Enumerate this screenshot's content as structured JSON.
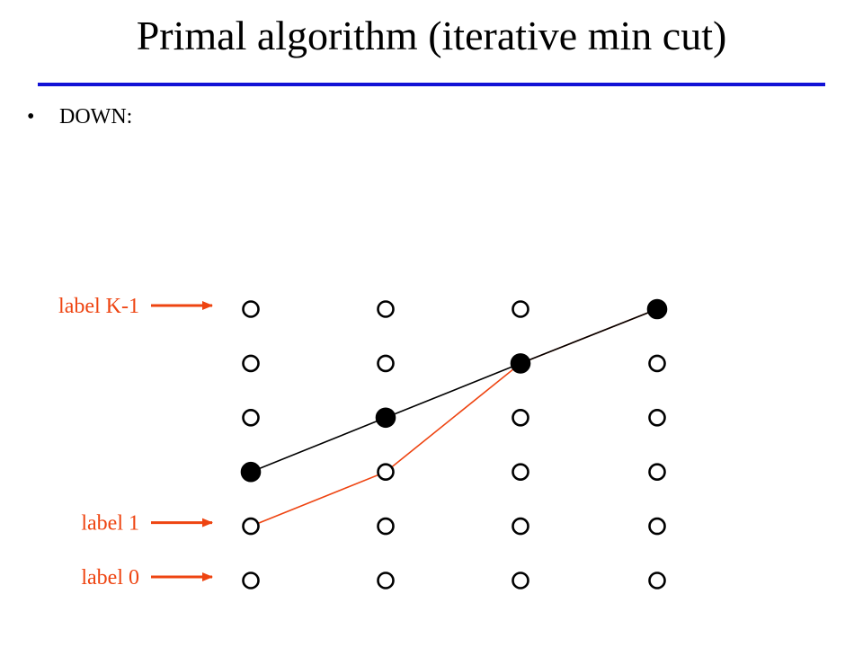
{
  "slide": {
    "title": "Primal algorithm (iterative min cut)",
    "bullet_symbol": "•",
    "bullet_text": "DOWN:"
  },
  "diagram": {
    "columns": 4,
    "rows": 6,
    "label_pointers": [
      {
        "text": "label K-1",
        "row": 5
      },
      {
        "text": "label 1",
        "row": 1
      },
      {
        "text": "label 0",
        "row": 0
      }
    ],
    "filled_nodes": [
      {
        "column": 0,
        "row": 2
      },
      {
        "column": 1,
        "row": 3
      },
      {
        "column": 2,
        "row": 4
      },
      {
        "column": 3,
        "row": 5
      }
    ],
    "black_path": [
      [
        0,
        2
      ],
      [
        1,
        3
      ],
      [
        2,
        4
      ],
      [
        3,
        5
      ]
    ],
    "orange_path": [
      [
        0,
        1
      ],
      [
        1,
        2
      ],
      [
        2,
        4
      ],
      [
        3,
        5
      ]
    ],
    "colors": {
      "accent_orange": "#ee4411",
      "rule_blue": "#1212d6",
      "node_outline": "#000000"
    }
  }
}
